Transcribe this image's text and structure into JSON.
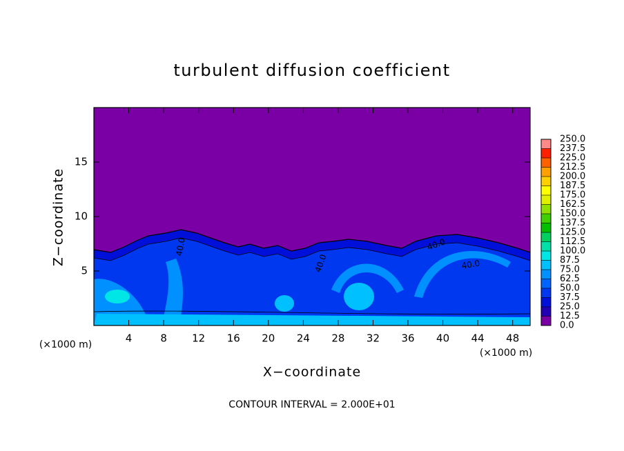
{
  "chart_data": {
    "type": "contour",
    "title": "turbulent diffusion coefficient",
    "x_label": "X−coordinate",
    "y_label": "Z−coordinate",
    "x_unit_left": "(×1000 m)",
    "x_unit_right": "(×1000 m)",
    "footnote": "CONTOUR INTERVAL = 2.000E+01",
    "xlim": [
      0,
      50
    ],
    "ylim": [
      0,
      20
    ],
    "xticks": [
      4,
      8,
      12,
      16,
      20,
      24,
      28,
      32,
      36,
      40,
      44,
      48
    ],
    "yticks": [
      5,
      10,
      15
    ],
    "contour_labels": [
      "40.0",
      "40.0",
      "40.0",
      "40.0"
    ],
    "colorbar": {
      "levels": [
        {
          "value": 0,
          "label": "0.0"
        },
        {
          "value": 12.5,
          "label": "12.5"
        },
        {
          "value": 25,
          "label": "25.0"
        },
        {
          "value": 37.5,
          "label": "37.5"
        },
        {
          "value": 50,
          "label": "50.0"
        },
        {
          "value": 62.5,
          "label": "62.5"
        },
        {
          "value": 75,
          "label": "75.0"
        },
        {
          "value": 87.5,
          "label": "87.5"
        },
        {
          "value": 100,
          "label": "100.0"
        },
        {
          "value": 112.5,
          "label": "112.5"
        },
        {
          "value": 125,
          "label": "125.0"
        },
        {
          "value": 137.5,
          "label": "137.5"
        },
        {
          "value": 150,
          "label": "150.0"
        },
        {
          "value": 162.5,
          "label": "162.5"
        },
        {
          "value": 175,
          "label": "175.0"
        },
        {
          "value": 187.5,
          "label": "187.5"
        },
        {
          "value": 200,
          "label": "200.0"
        },
        {
          "value": 212.5,
          "label": "212.5"
        },
        {
          "value": 225,
          "label": "225.0"
        },
        {
          "value": 237.5,
          "label": "237.5"
        },
        {
          "value": 250,
          "label": "250.0"
        }
      ],
      "colors": [
        "#7a00a6",
        "#2200b4",
        "#0010d8",
        "#0038f0",
        "#0064ff",
        "#0090ff",
        "#00c0ff",
        "#00e6e6",
        "#00e0a8",
        "#00d060",
        "#00c000",
        "#40d000",
        "#90e000",
        "#e0f000",
        "#ffff00",
        "#ffd000",
        "#ffa000",
        "#ff6000",
        "#ff2000",
        "#ff8888"
      ]
    }
  }
}
